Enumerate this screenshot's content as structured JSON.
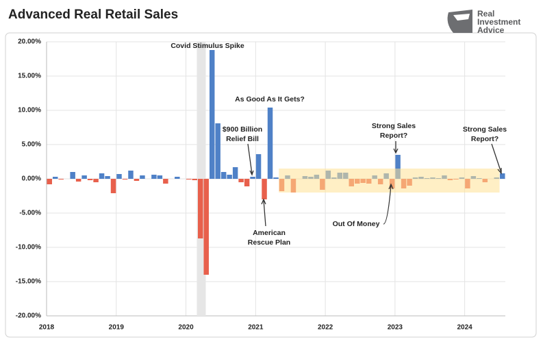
{
  "chart_data": {
    "type": "bar",
    "title": "Advanced Real Retail Sales",
    "logo": [
      "Real",
      "Investment",
      "Advice"
    ],
    "categories": [
      "2018",
      null,
      null,
      null,
      null,
      null,
      null,
      null,
      null,
      null,
      null,
      null,
      "2019",
      null,
      null,
      null,
      null,
      null,
      null,
      null,
      null,
      null,
      null,
      null,
      "2020",
      null,
      null,
      null,
      null,
      null,
      null,
      null,
      null,
      null,
      null,
      null,
      "2021",
      null,
      null,
      null,
      null,
      null,
      null,
      null,
      null,
      null,
      null,
      null,
      "2022",
      null,
      null,
      null,
      null,
      null,
      null,
      null,
      null,
      null,
      null,
      null,
      "2023",
      null,
      null,
      null,
      null,
      null,
      null,
      null,
      null,
      null,
      null,
      null,
      "2024",
      null,
      null,
      null,
      null,
      null,
      null
    ],
    "values": [
      -0.8,
      0.3,
      -0.1,
      0.0,
      1.0,
      -0.4,
      0.5,
      -0.2,
      -0.5,
      0.8,
      0.4,
      -2.1,
      0.7,
      -0.1,
      1.2,
      -0.3,
      0.5,
      0.0,
      0.6,
      0.5,
      -0.7,
      0.0,
      0.3,
      0.0,
      -0.1,
      -0.2,
      -8.7,
      -14.0,
      18.8,
      8.1,
      1.0,
      0.6,
      1.7,
      -0.5,
      -1.1,
      0.3,
      3.6,
      -3.0,
      10.4,
      0.2,
      -1.8,
      0.5,
      -2.0,
      0.0,
      0.4,
      0.3,
      0.6,
      -1.6,
      1.2,
      0.2,
      0.9,
      0.9,
      -1.1,
      -0.7,
      -0.6,
      -0.7,
      0.5,
      -0.8,
      0.8,
      -1.4,
      3.5,
      -1.4,
      -1.0,
      0.2,
      0.3,
      0.1,
      0.2,
      0.1,
      0.5,
      -0.2,
      -0.1,
      0.2,
      -1.4,
      0.4,
      0.1,
      -0.5,
      0.0,
      0.2,
      0.8
    ],
    "positive_color": "#4f81c7",
    "negative_color": "#e8604c",
    "ylim": [
      -20,
      20
    ],
    "yticks": [
      {
        "value": -20,
        "label": "-20.00%"
      },
      {
        "value": -15,
        "label": "-15.00%"
      },
      {
        "value": -10,
        "label": "-10.00%"
      },
      {
        "value": -5,
        "label": "-5.00%"
      },
      {
        "value": 0,
        "label": "0.00%"
      },
      {
        "value": 5,
        "label": "5.00%"
      },
      {
        "value": 10,
        "label": "10.00%"
      },
      {
        "value": 15,
        "label": "15.00%"
      },
      {
        "value": 20,
        "label": "20.00%"
      }
    ],
    "grid": true,
    "annotations": [
      {
        "lines": [
          "Covid Stimulus Spike"
        ]
      },
      {
        "lines": [
          "As Good As It Gets?"
        ]
      },
      {
        "lines": [
          "$900 Billion",
          "Relief Bill"
        ]
      },
      {
        "lines": [
          "American",
          "Rescue Plan"
        ]
      },
      {
        "lines": [
          "Out Of Money"
        ]
      },
      {
        "lines": [
          "Strong Sales",
          "Report?"
        ]
      },
      {
        "lines": [
          "Strong Sales",
          "Report?"
        ]
      }
    ]
  }
}
